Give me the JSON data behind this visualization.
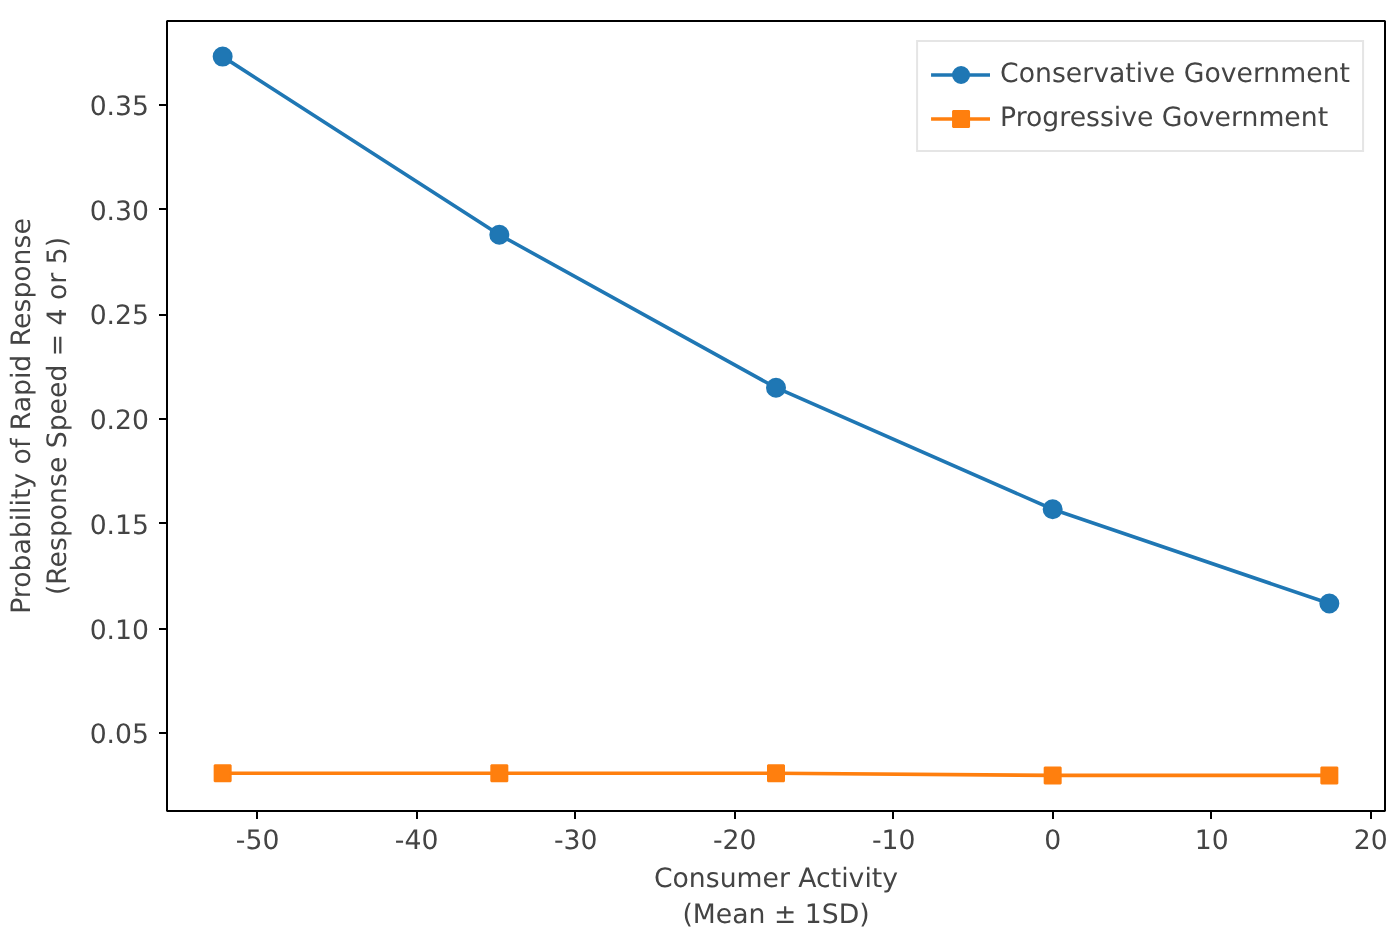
{
  "chart_data": {
    "type": "line",
    "xlabel": "Consumer Activity\n(Mean ± 1SD)",
    "ylabel": "Probability of Rapid Response\n(Response Speed = 4 or 5)",
    "x": [
      -52.2,
      -34.8,
      -17.4,
      0,
      17.4
    ],
    "series": [
      {
        "name": "Conservative Government",
        "color": "#1f77b4",
        "marker": "circle",
        "values": [
          0.373,
          0.288,
          0.215,
          0.157,
          0.112
        ]
      },
      {
        "name": "Progressive Government",
        "color": "#ff7f0e",
        "marker": "square",
        "values": [
          0.031,
          0.031,
          0.031,
          0.03,
          0.03
        ]
      }
    ],
    "xlim": [
      -55.7,
      20.9
    ],
    "ylim": [
      0.013,
      0.39
    ],
    "xticks": [
      -50,
      -40,
      -30,
      -20,
      -10,
      0,
      10,
      20
    ],
    "yticks": [
      0.05,
      {
        "value": 0.1,
        "label": "0.10"
      },
      0.15,
      {
        "value": 0.2,
        "label": "0.20"
      },
      0.25,
      {
        "value": 0.3,
        "label": "0.30"
      },
      0.35
    ],
    "grid": false,
    "legend": "top right"
  }
}
